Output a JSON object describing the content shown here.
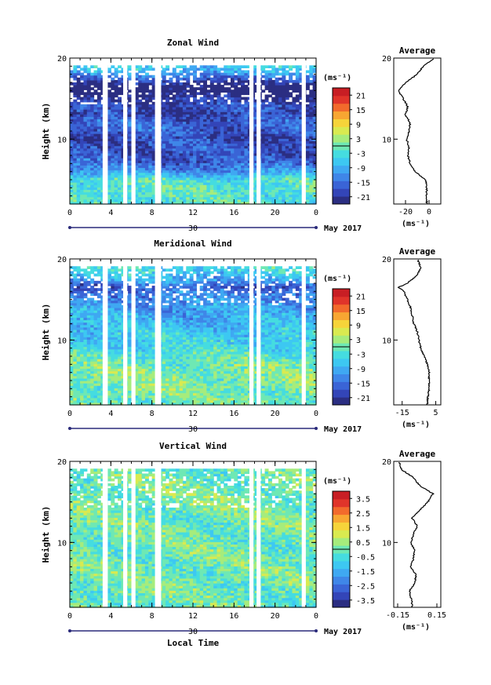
{
  "figure": {
    "xlabel": "Local Time",
    "date_label": "May 2017",
    "date_day": "30",
    "ylabel": "Height (km)",
    "palette": [
      "#2b2e82",
      "#3345b8",
      "#3a64d6",
      "#3f86e8",
      "#3fa8f2",
      "#3dc8f2",
      "#45dce0",
      "#6ee8b4",
      "#a6ec7c",
      "#d9ea50",
      "#f6d43a",
      "#f8a632",
      "#f26a2c",
      "#e0342a",
      "#c81e24"
    ]
  },
  "chart_data": [
    {
      "type": "heatmap",
      "title": "Zonal Wind",
      "x": {
        "ticks": [
          "0",
          "4",
          "8",
          "12",
          "16",
          "20",
          "0"
        ],
        "range_hours": [
          0,
          24
        ]
      },
      "y": {
        "ticks": [
          "10",
          "20"
        ],
        "range_km": [
          2,
          20
        ]
      },
      "colorbar": {
        "unit": "(ms⁻¹)",
        "ticks": [
          "21",
          "15",
          "9",
          "3",
          "-3",
          "-9",
          "-15",
          "-21"
        ],
        "range": [
          -24,
          24
        ]
      },
      "missing_time_gaps_hours": [
        [
          3.2,
          3.7
        ],
        [
          5.2,
          5.6
        ],
        [
          6.0,
          6.4
        ],
        [
          8.3,
          8.9
        ],
        [
          17.5,
          17.9
        ],
        [
          18.2,
          18.6
        ],
        [
          22.6,
          23.0
        ]
      ],
      "height_profile_mean_ms": [
        [
          2.5,
          -2
        ],
        [
          4,
          -2
        ],
        [
          5,
          -3
        ],
        [
          6,
          -12
        ],
        [
          7,
          -16
        ],
        [
          8,
          -18
        ],
        [
          9,
          -17
        ],
        [
          10,
          -19
        ],
        [
          11,
          -17
        ],
        [
          12,
          -16
        ],
        [
          13,
          -20
        ],
        [
          14,
          -18
        ],
        [
          15,
          -22
        ],
        [
          16,
          -26
        ],
        [
          17,
          -20
        ],
        [
          18,
          -10
        ],
        [
          19,
          -5
        ],
        [
          20,
          5
        ]
      ],
      "average_panel": {
        "title": "Average",
        "y_ticks": [
          "10",
          "20"
        ],
        "x_ticks": [
          "-20",
          "0"
        ],
        "x_range": [
          -30,
          10
        ],
        "unit": "(ms⁻¹)"
      }
    },
    {
      "type": "heatmap",
      "title": "Meridional Wind",
      "x": {
        "ticks": [
          "0",
          "4",
          "8",
          "12",
          "16",
          "20",
          "0"
        ],
        "range_hours": [
          0,
          24
        ]
      },
      "y": {
        "ticks": [
          "10",
          "20"
        ],
        "range_km": [
          2,
          20
        ]
      },
      "colorbar": {
        "unit": "(ms⁻¹)",
        "ticks": [
          "21",
          "15",
          "9",
          "3",
          "-3",
          "-9",
          "-15",
          "-21"
        ],
        "range": [
          -24,
          24
        ]
      },
      "missing_time_gaps_hours": [
        [
          3.2,
          3.7
        ],
        [
          5.2,
          5.6
        ],
        [
          6.0,
          6.4
        ],
        [
          8.3,
          8.9
        ],
        [
          17.5,
          17.9
        ],
        [
          18.2,
          18.6
        ],
        [
          22.6,
          23.0
        ]
      ],
      "height_profile_mean_ms": [
        [
          2.5,
          0
        ],
        [
          4,
          1
        ],
        [
          5,
          1
        ],
        [
          6,
          1
        ],
        [
          7,
          0
        ],
        [
          8,
          -2
        ],
        [
          9,
          -4
        ],
        [
          10,
          -5
        ],
        [
          11,
          -6
        ],
        [
          12,
          -8
        ],
        [
          13,
          -9
        ],
        [
          14,
          -10
        ],
        [
          15,
          -12
        ],
        [
          16,
          -14
        ],
        [
          16.5,
          -17
        ],
        [
          17,
          -12
        ],
        [
          18,
          -6
        ],
        [
          19,
          -4
        ],
        [
          20,
          -6
        ]
      ],
      "average_panel": {
        "title": "Average",
        "y_ticks": [
          "10",
          "20"
        ],
        "x_ticks": [
          "-15",
          "5"
        ],
        "x_range": [
          -20,
          8
        ],
        "unit": "(ms⁻¹)"
      }
    },
    {
      "type": "heatmap",
      "title": "Vertical Wind",
      "x": {
        "ticks": [
          "0",
          "4",
          "8",
          "12",
          "16",
          "20",
          "0"
        ],
        "range_hours": [
          0,
          24
        ]
      },
      "y": {
        "ticks": [
          "10",
          "20"
        ],
        "range_km": [
          2,
          20
        ]
      },
      "colorbar": {
        "unit": "(ms⁻¹)",
        "ticks": [
          "3.5",
          "2.5",
          "1.5",
          "0.5",
          "-0.5",
          "-1.5",
          "-2.5",
          "-3.5"
        ],
        "range": [
          -4,
          4
        ]
      },
      "missing_time_gaps_hours": [
        [
          3.2,
          3.7
        ],
        [
          5.2,
          5.6
        ],
        [
          6.0,
          6.4
        ],
        [
          8.3,
          8.9
        ],
        [
          17.5,
          17.9
        ],
        [
          18.2,
          18.6
        ],
        [
          22.6,
          23.0
        ]
      ],
      "height_profile_mean_ms": [
        [
          2.5,
          -0.04
        ],
        [
          4,
          -0.06
        ],
        [
          5,
          -0.02
        ],
        [
          6,
          -0.01
        ],
        [
          7,
          -0.05
        ],
        [
          8,
          -0.03
        ],
        [
          9,
          -0.02
        ],
        [
          10,
          -0.05
        ],
        [
          11,
          -0.03
        ],
        [
          12,
          0.0
        ],
        [
          13,
          -0.04
        ],
        [
          14,
          0.02
        ],
        [
          15,
          0.08
        ],
        [
          16,
          0.12
        ],
        [
          17,
          0.02
        ],
        [
          18,
          -0.03
        ],
        [
          19,
          -0.12
        ],
        [
          20,
          -0.14
        ]
      ],
      "average_panel": {
        "title": "Average",
        "y_ticks": [
          "10",
          "20"
        ],
        "x_ticks": [
          "-0.15",
          "0.15"
        ],
        "x_range": [
          -0.18,
          0.18
        ],
        "unit": "(ms⁻¹)"
      }
    }
  ]
}
